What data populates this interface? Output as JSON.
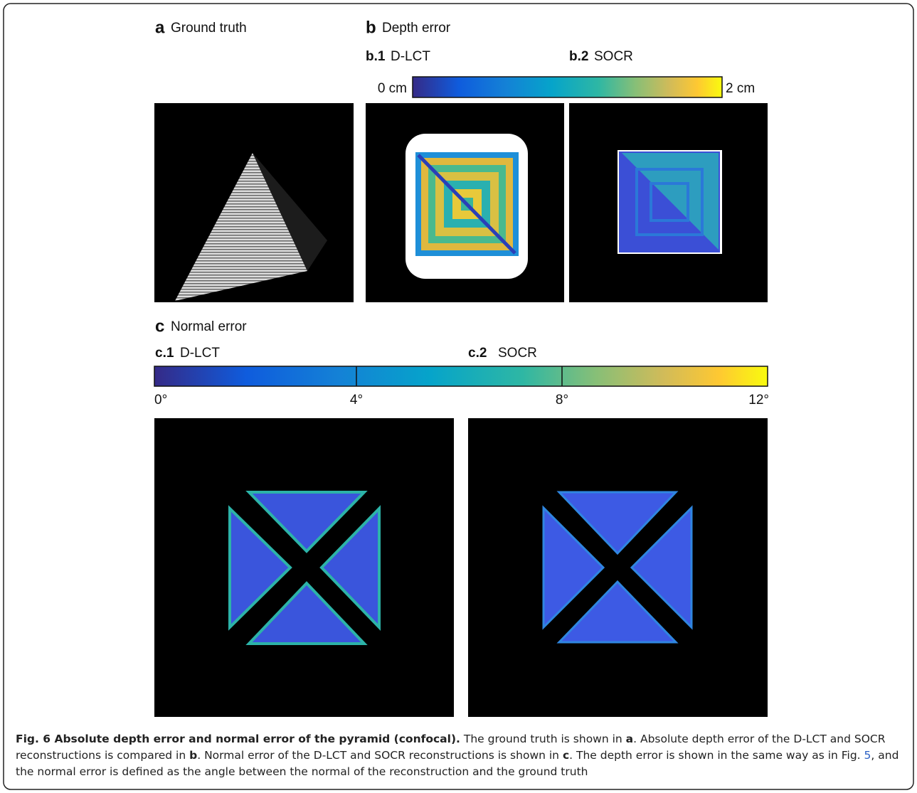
{
  "panels": {
    "a": {
      "letter": "a",
      "title": "Ground truth"
    },
    "b": {
      "letter": "b",
      "title": "Depth error",
      "sub1": {
        "label": "b.1",
        "name": "D-LCT"
      },
      "sub2": {
        "label": "b.2",
        "name": "SOCR"
      },
      "colorbar": {
        "min_label": "0 cm",
        "max_label": "2 cm"
      }
    },
    "c": {
      "letter": "c",
      "title": "Normal error",
      "sub1": {
        "label": "c.1",
        "name": "D-LCT"
      },
      "sub2": {
        "label": "c.2",
        "name": "SOCR"
      },
      "colorbar": {
        "ticks": [
          "0°",
          "4°",
          "8°",
          "12°"
        ]
      }
    }
  },
  "caption": {
    "parts": [
      "Fig. 6 Absolute depth error and normal error of the pyramid (confocal).",
      " The ground truth is shown in ",
      "a",
      ". Absolute depth error of the D-LCT and SOCR reconstructions is compared in ",
      "b",
      ". Normal error of the D-LCT and SOCR reconstructions is shown in ",
      "c",
      ". The depth error is shown in the same way as in Fig. ",
      "5",
      ", and the normal error is defined as the angle between the normal of the reconstruction and the ground truth"
    ]
  }
}
